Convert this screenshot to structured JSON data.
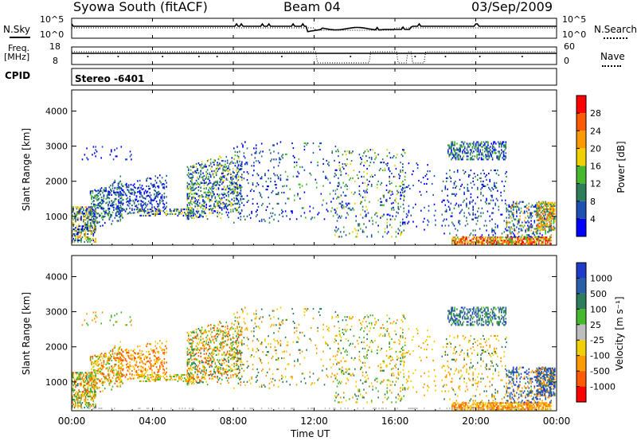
{
  "header": {
    "station": "Syowa South (fitACF)",
    "beam": "Beam 04",
    "date": "03/Sep/2009"
  },
  "top_panels": {
    "noise": {
      "left_label": "N.Sky",
      "right_label": "N.Search",
      "tick_top": "10^5",
      "tick_bottom": "10^0",
      "right_tick_top": "10^5",
      "right_tick_bottom": "10^0"
    },
    "freq": {
      "left_label_1": "Freq.",
      "left_label_2": "[MHz]",
      "tick_top": "18",
      "tick_bottom": "8",
      "right_label": "Nave",
      "right_tick_top": "60",
      "right_tick_bottom": "0"
    },
    "cpid": {
      "label": "CPID",
      "value": "Stereo -6401"
    }
  },
  "colors": {
    "power_scale": [
      "#0000ff",
      "#1e50b4",
      "#2e7d5a",
      "#45b82e",
      "#f0d000",
      "#ff9900",
      "#ff5a00",
      "#ff0000"
    ],
    "velocity_scale": [
      "#1e3cc8",
      "#2a5fa8",
      "#2e7d5a",
      "#45b82e",
      "#bebebe",
      "#f0d000",
      "#ff9a00",
      "#ff5a00",
      "#ff0000"
    ]
  },
  "chart_data": [
    {
      "type": "heatmap",
      "name": "power",
      "xlabel": "Time UT",
      "ylabel": "Slant Range [km]",
      "ylim": [
        180,
        4600
      ],
      "yticks": [
        "1000",
        "2000",
        "3000",
        "4000"
      ],
      "xlim_hours": [
        0,
        24
      ],
      "xticks": [
        "00:00",
        "04:00",
        "08:00",
        "12:00",
        "16:00",
        "20:00",
        "00:00"
      ],
      "colorbar_label": "Power [dB]",
      "colorbar_ticks": [
        "4",
        "8",
        "12",
        "16",
        "20",
        "24",
        "28"
      ]
    },
    {
      "type": "heatmap",
      "name": "velocity",
      "xlabel": "Time UT",
      "ylabel": "Slant Range [km]",
      "ylim": [
        180,
        4600
      ],
      "yticks": [
        "1000",
        "2000",
        "3000",
        "4000"
      ],
      "xlim_hours": [
        0,
        24
      ],
      "xticks": [
        "00:00",
        "04:00",
        "08:00",
        "12:00",
        "16:00",
        "20:00",
        "00:00"
      ],
      "colorbar_label": "Velocity [m s⁻¹]",
      "colorbar_ticks": [
        "1000",
        "500",
        "100",
        "25",
        "-25",
        "-100",
        "-500",
        "-1000"
      ]
    }
  ]
}
